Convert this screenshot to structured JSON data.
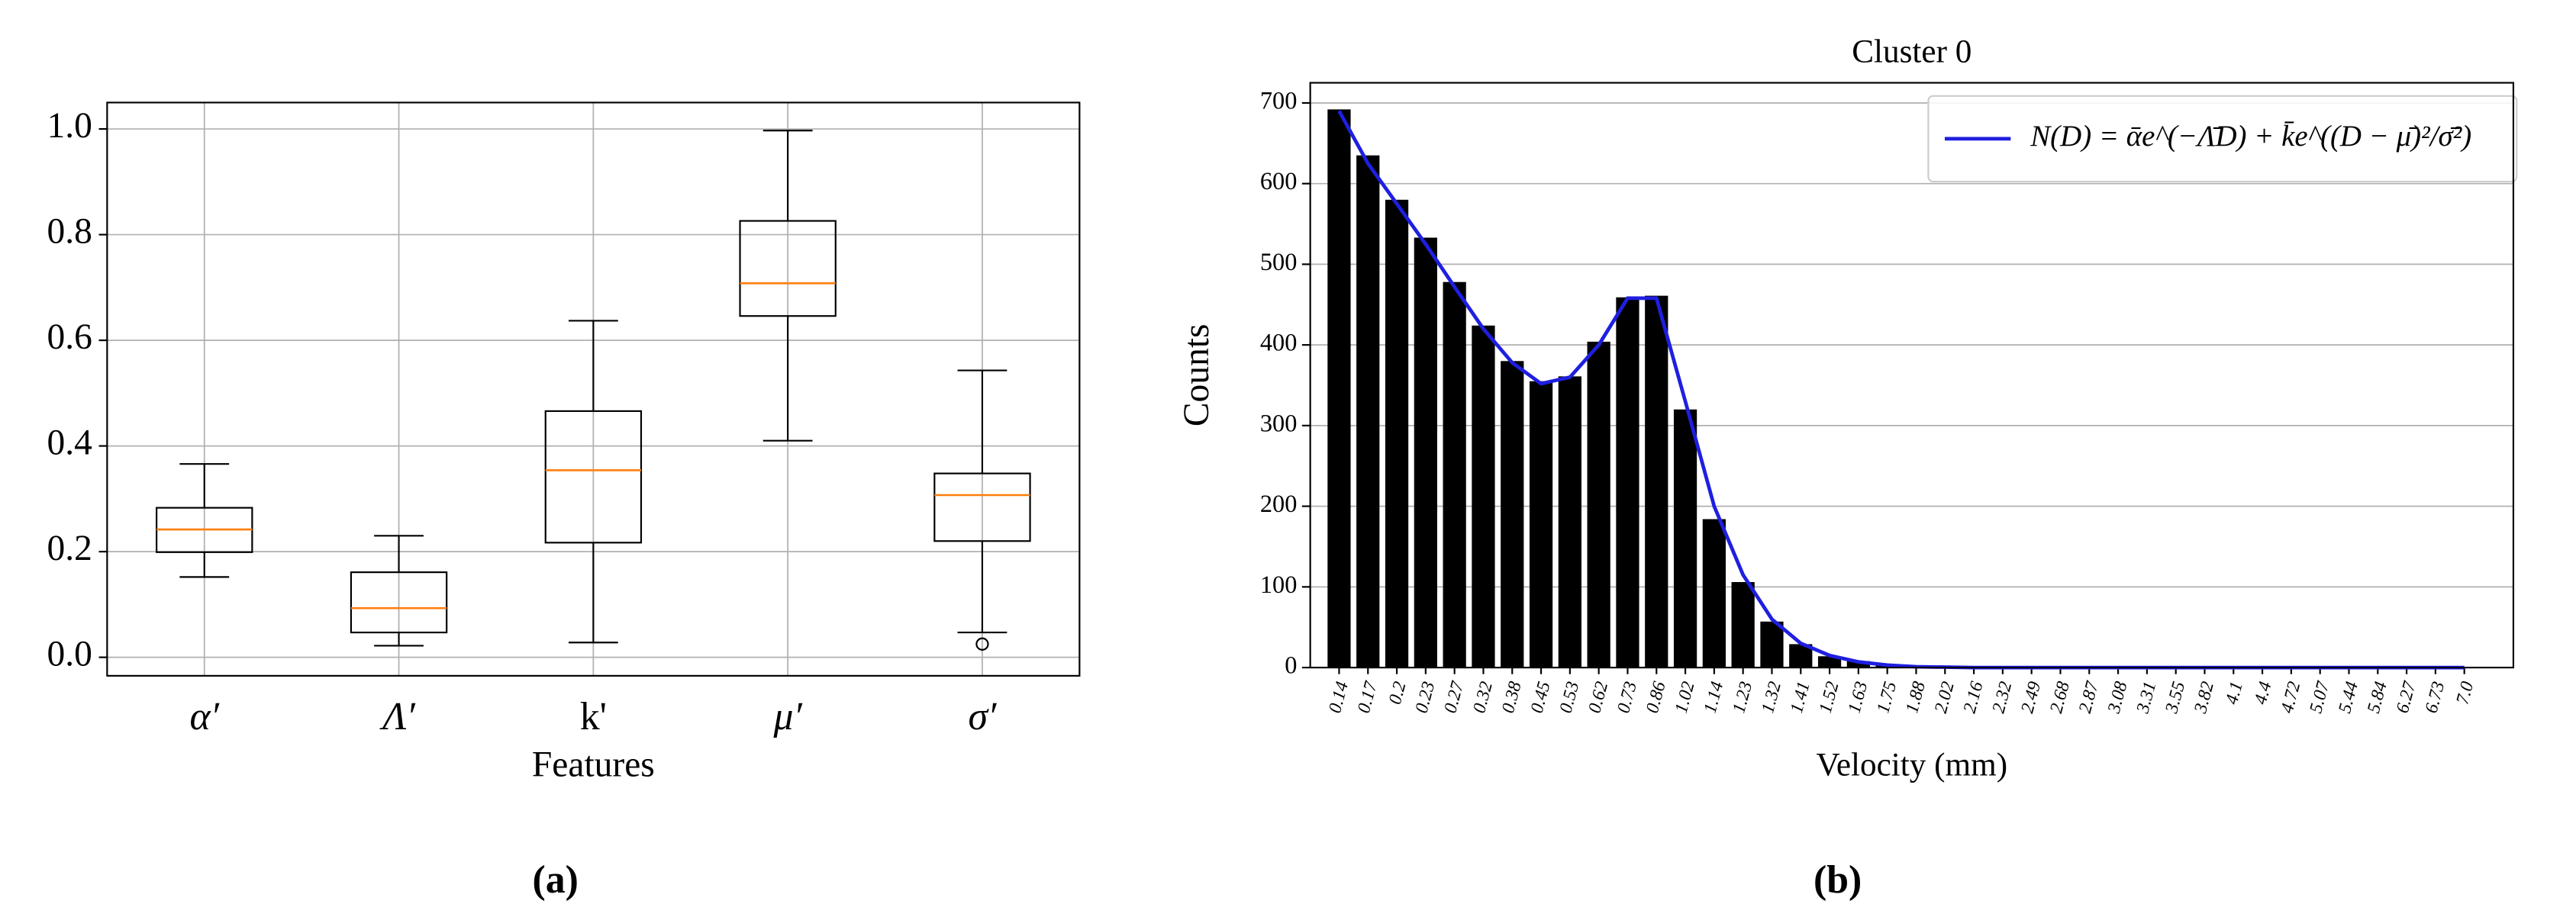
{
  "chart_data": [
    {
      "type": "box",
      "caption": "(a)",
      "x_label": "Features",
      "categories": [
        "α′",
        "Λ′",
        "k'",
        "μ′",
        "σ′"
      ],
      "boxes": [
        {
          "whisker_low": 0.152,
          "q1": 0.199,
          "median": 0.242,
          "q3": 0.283,
          "whisker_high": 0.366
        },
        {
          "whisker_low": 0.022,
          "q1": 0.047,
          "median": 0.093,
          "q3": 0.161,
          "whisker_high": 0.23
        },
        {
          "whisker_low": 0.028,
          "q1": 0.217,
          "median": 0.354,
          "q3": 0.466,
          "whisker_high": 0.637
        },
        {
          "whisker_low": 0.41,
          "q1": 0.646,
          "median": 0.708,
          "q3": 0.826,
          "whisker_high": 0.997
        },
        {
          "whisker_low": 0.047,
          "q1": 0.22,
          "median": 0.307,
          "q3": 0.348,
          "whisker_high": 0.543,
          "outliers": [
            0.025
          ]
        }
      ],
      "color": "#000000",
      "median_color": "#ff7f0e",
      "ylim": [
        -0.035,
        1.05
      ],
      "yticks": [
        {
          "value": 0,
          "label": "0.0"
        },
        0.2,
        0.4,
        0.6,
        0.8,
        {
          "value": 1,
          "label": "1.0"
        }
      ],
      "grid": true
    },
    {
      "type": "bar",
      "caption": "(b)",
      "title": "Cluster 0",
      "x_label": "Velocity (mm)",
      "y_label": "Counts",
      "categories": [
        "0.14",
        "0.17",
        "0.2",
        "0.23",
        "0.27",
        "0.32",
        "0.38",
        "0.45",
        "0.53",
        "0.62",
        "0.73",
        "0.86",
        "1.02",
        "1.14",
        "1.23",
        "1.32",
        "1.41",
        "1.52",
        "1.63",
        "1.75",
        "1.88",
        "2.02",
        "2.16",
        "2.32",
        "2.49",
        "2.68",
        "2.87",
        "3.08",
        "3.31",
        "3.55",
        "3.82",
        "4.1",
        "4.4",
        "4.72",
        "5.07",
        "5.44",
        "5.84",
        "6.27",
        "6.73",
        "7.0"
      ],
      "values": [
        692,
        635,
        580,
        533,
        478,
        424,
        380,
        355,
        361,
        404,
        459,
        461,
        320,
        184,
        106,
        57,
        29,
        14,
        8,
        4,
        2,
        1,
        1,
        0,
        0,
        0,
        0,
        0,
        0,
        0,
        0,
        0,
        0,
        0,
        0,
        0,
        0,
        0,
        0,
        0
      ],
      "color": "#000000",
      "series": [
        {
          "name": "N(D) = ᾱe^(−Λ̄D) + k̄e^((D − μ̄)²/σ̄²)",
          "color": "#1f1fe0",
          "values": [
            690,
            625,
            575,
            525,
            472,
            420,
            378,
            352,
            360,
            400,
            458,
            458,
            330,
            200,
            115,
            60,
            30,
            15,
            7,
            3,
            1,
            0.5,
            0,
            0,
            0,
            0,
            0,
            0,
            0,
            0,
            0,
            0,
            0,
            0,
            0,
            0,
            0,
            0,
            0,
            0
          ]
        }
      ],
      "ylim": [
        0,
        725
      ],
      "yticks": [
        0,
        100,
        200,
        300,
        400,
        500,
        600,
        700
      ],
      "grid": true,
      "legend": "upper right"
    }
  ]
}
